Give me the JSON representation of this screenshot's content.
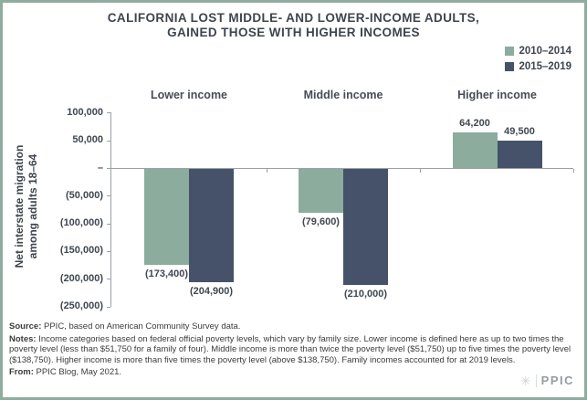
{
  "header": {
    "title_line1": "CALIFORNIA LOST MIDDLE- AND LOWER-INCOME ADULTS,",
    "title_line2": "GAINED THOSE WITH HIGHER INCOMES"
  },
  "legend": {
    "items": [
      {
        "label": "2010–2014",
        "color": "#8cac9d"
      },
      {
        "label": "2015–2019",
        "color": "#45526a"
      }
    ]
  },
  "chart_data": {
    "type": "bar",
    "title": "CALIFORNIA LOST MIDDLE- AND LOWER-INCOME ADULTS, GAINED THOSE WITH HIGHER INCOMES",
    "categories": [
      "Lower income",
      "Middle income",
      "Higher income"
    ],
    "series": [
      {
        "name": "2010–2014",
        "color": "#8cac9d",
        "values": [
          -173400,
          -79600,
          64200
        ],
        "labels": [
          "(173,400)",
          "(79,600)",
          "64,200"
        ]
      },
      {
        "name": "2015–2019",
        "color": "#45526a",
        "values": [
          -204900,
          -210000,
          49500
        ],
        "labels": [
          "(204,900)",
          "(210,000)",
          "49,500"
        ]
      }
    ],
    "ylabel_line1": "Net interstate migration",
    "ylabel_line2": "among adults 18–64",
    "ylim": [
      -250000,
      100000
    ],
    "ytick_values": [
      100000,
      50000,
      0,
      -50000,
      -100000,
      -150000,
      -200000,
      -250000
    ],
    "ytick_labels": [
      "100,000",
      "50,000",
      "–",
      "(50,000)",
      "(100,000)",
      "(150,000)",
      "(200,000)",
      "(250,000)"
    ],
    "grid": false,
    "legend_position": "top-right"
  },
  "footer": {
    "source_label": "Source:",
    "source_text": " PPIC, based on American Community Survey data.",
    "notes_label": "Notes:",
    "notes_text": " Income categories based on federal official poverty levels, which vary by family size. Lower income is defined here as up to two times the poverty level (less than $51,750 for a family of four). Middle income is more than twice the poverty level ($51,750) up to five times the poverty level ($138,750). Higher income is more than five times the poverty level (above $138,750). Family incomes accounted for at 2019 levels.",
    "from_label": "From:",
    "from_text": " PPIC Blog, May 2021.",
    "logo": {
      "icon": "✳",
      "text": "PPIC"
    }
  },
  "colors": {
    "border": "#8fad9e",
    "title_text": "#3e454e",
    "axis_gray": "#9aa0a5",
    "footer_text": "#3b3b3b",
    "logo_gray": "#969ca2"
  }
}
